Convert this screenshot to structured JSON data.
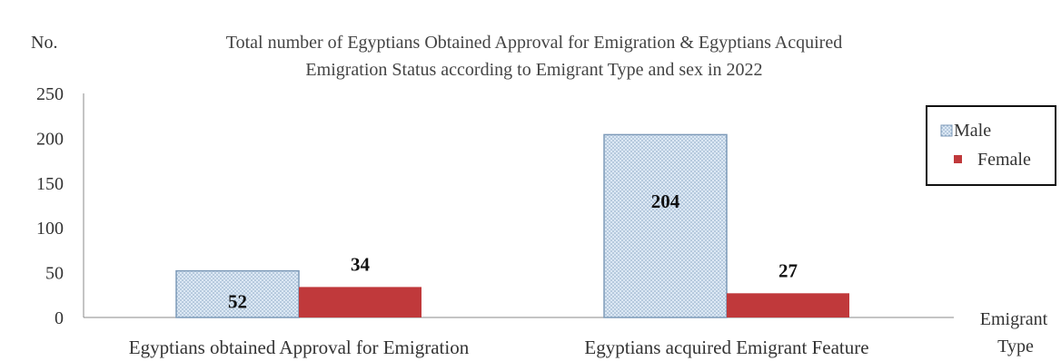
{
  "chart_data": {
    "type": "bar",
    "title": [
      "Total number of Egyptians Obtained Approval for Emigration & Egyptians Acquired",
      "Emigration Status according to  Emigrant  Type and sex in 2022"
    ],
    "ylabel": "No.",
    "xlabel": [
      "Emigrant",
      "Type"
    ],
    "categories": [
      "Egyptians obtained Approval for Emigration",
      "Egyptians acquired Emigrant Feature"
    ],
    "series": [
      {
        "name": "Male",
        "values": [
          52,
          204
        ],
        "color": "#c9dbee",
        "pattern": "dotted"
      },
      {
        "name": "Female",
        "values": [
          34,
          27
        ],
        "color": "#c0393b",
        "pattern": "solid"
      }
    ],
    "ylim": [
      0,
      250
    ],
    "yticks": [
      0,
      50,
      100,
      150,
      200,
      250
    ],
    "grid": false,
    "legend_position": "right",
    "data_labels": true
  }
}
